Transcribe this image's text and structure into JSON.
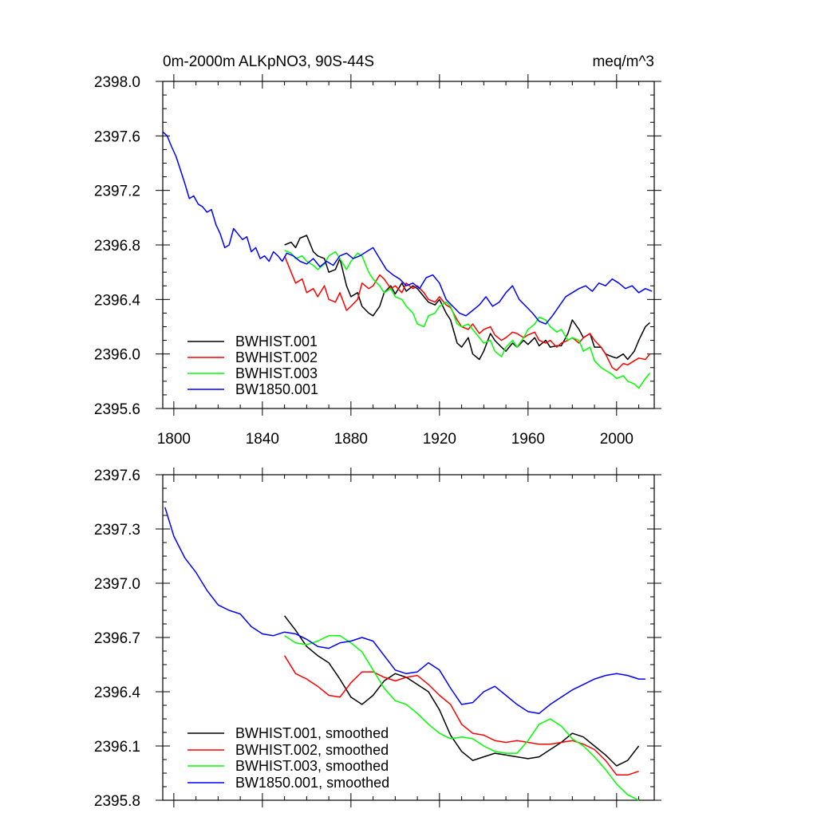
{
  "chart_data": [
    {
      "type": "line",
      "title_left": "0m-2000m ALKpNO3, 90S-44S",
      "title_right": "meq/m^3",
      "xlim": [
        1795,
        2017
      ],
      "ylim": [
        2395.6,
        2398.0
      ],
      "xticks": [
        1800,
        1840,
        1880,
        1920,
        1960,
        2000
      ],
      "yticks": [
        2395.6,
        2396.0,
        2396.4,
        2396.8,
        2397.2,
        2397.6,
        2398.0
      ],
      "ytick_labels": [
        "2395.6",
        "2396.0",
        "2396.4",
        "2396.8",
        "2397.2",
        "2397.6",
        "2398.0"
      ],
      "xtick_labels": [
        "1800",
        "1840",
        "1880",
        "1920",
        "1960",
        "2000"
      ],
      "series": [
        {
          "name": "BWHIST.001",
          "color": "#000000",
          "x": [
            1850,
            1853,
            1855,
            1857,
            1860,
            1863,
            1865,
            1868,
            1870,
            1873,
            1875,
            1878,
            1880,
            1883,
            1885,
            1888,
            1890,
            1893,
            1895,
            1898,
            1900,
            1903,
            1905,
            1908,
            1910,
            1913,
            1915,
            1918,
            1920,
            1923,
            1925,
            1928,
            1930,
            1933,
            1935,
            1938,
            1940,
            1943,
            1945,
            1948,
            1950,
            1953,
            1955,
            1958,
            1960,
            1963,
            1965,
            1968,
            1970,
            1973,
            1975,
            1978,
            1980,
            1983,
            1985,
            1988,
            1990,
            1993,
            1995,
            1998,
            2000,
            2003,
            2005,
            2008,
            2010,
            2013,
            2015
          ],
          "y": [
            2396.8,
            2396.82,
            2396.78,
            2396.85,
            2396.87,
            2396.75,
            2396.72,
            2396.7,
            2396.6,
            2396.62,
            2396.7,
            2396.5,
            2396.42,
            2396.45,
            2396.35,
            2396.3,
            2396.28,
            2396.35,
            2396.45,
            2396.5,
            2396.44,
            2396.52,
            2396.46,
            2396.5,
            2396.48,
            2396.42,
            2396.38,
            2396.36,
            2396.4,
            2396.3,
            2396.25,
            2396.08,
            2396.05,
            2396.12,
            2396.0,
            2395.96,
            2396.02,
            2396.15,
            2396.1,
            2396.05,
            2396.02,
            2396.08,
            2396.05,
            2396.1,
            2396.07,
            2396.12,
            2396.06,
            2396.1,
            2396.05,
            2396.06,
            2396.06,
            2396.15,
            2396.25,
            2396.18,
            2396.12,
            2396.15,
            2396.05,
            2396.05,
            2396.0,
            2395.98,
            2395.97,
            2396.0,
            2395.96,
            2396.02,
            2396.1,
            2396.2,
            2396.23
          ]
        },
        {
          "name": "BWHIST.002",
          "color": "#ff0000",
          "x": [
            1850,
            1853,
            1855,
            1858,
            1860,
            1863,
            1865,
            1868,
            1870,
            1873,
            1875,
            1878,
            1880,
            1883,
            1885,
            1888,
            1890,
            1893,
            1895,
            1898,
            1900,
            1903,
            1905,
            1908,
            1910,
            1913,
            1915,
            1918,
            1920,
            1923,
            1925,
            1928,
            1930,
            1933,
            1935,
            1938,
            1940,
            1943,
            1945,
            1948,
            1950,
            1953,
            1955,
            1958,
            1960,
            1963,
            1965,
            1968,
            1970,
            1973,
            1975,
            1978,
            1980,
            1983,
            1985,
            1988,
            1990,
            1993,
            1995,
            1998,
            2000,
            2003,
            2005,
            2008,
            2010,
            2013,
            2015
          ],
          "y": [
            2396.72,
            2396.6,
            2396.52,
            2396.55,
            2396.45,
            2396.48,
            2396.42,
            2396.5,
            2396.4,
            2396.38,
            2396.45,
            2396.32,
            2396.35,
            2396.4,
            2396.52,
            2396.48,
            2396.5,
            2396.58,
            2396.55,
            2396.48,
            2396.5,
            2396.45,
            2396.52,
            2396.48,
            2396.5,
            2396.45,
            2396.4,
            2396.38,
            2396.42,
            2396.36,
            2396.34,
            2396.25,
            2396.2,
            2396.18,
            2396.22,
            2396.15,
            2396.18,
            2396.2,
            2396.14,
            2396.1,
            2396.12,
            2396.16,
            2396.15,
            2396.12,
            2396.14,
            2396.16,
            2396.1,
            2396.08,
            2396.1,
            2396.05,
            2396.08,
            2396.1,
            2396.12,
            2396.08,
            2396.12,
            2396.15,
            2396.1,
            2396.05,
            2396.0,
            2395.9,
            2395.88,
            2395.93,
            2395.92,
            2395.95,
            2395.97,
            2395.96,
            2396.0
          ]
        },
        {
          "name": "BWHIST.003",
          "color": "#00ff00",
          "x": [
            1850,
            1853,
            1855,
            1858,
            1860,
            1863,
            1865,
            1868,
            1870,
            1873,
            1875,
            1878,
            1880,
            1883,
            1885,
            1888,
            1890,
            1893,
            1895,
            1898,
            1900,
            1903,
            1905,
            1908,
            1910,
            1913,
            1915,
            1918,
            1920,
            1923,
            1925,
            1928,
            1930,
            1933,
            1935,
            1938,
            1940,
            1943,
            1945,
            1948,
            1950,
            1953,
            1955,
            1958,
            1960,
            1963,
            1965,
            1968,
            1970,
            1973,
            1975,
            1978,
            1980,
            1983,
            1985,
            1988,
            1990,
            1993,
            1995,
            1998,
            2000,
            2003,
            2005,
            2008,
            2010,
            2013,
            2015
          ],
          "y": [
            2396.76,
            2396.74,
            2396.7,
            2396.72,
            2396.68,
            2396.65,
            2396.62,
            2396.66,
            2396.72,
            2396.75,
            2396.7,
            2396.62,
            2396.68,
            2396.74,
            2396.72,
            2396.6,
            2396.55,
            2396.5,
            2396.45,
            2396.48,
            2396.42,
            2396.4,
            2396.35,
            2396.3,
            2396.22,
            2396.2,
            2396.28,
            2396.3,
            2396.35,
            2396.38,
            2396.35,
            2396.22,
            2396.2,
            2396.22,
            2396.18,
            2396.12,
            2396.08,
            2396.1,
            2396.02,
            2395.98,
            2396.05,
            2396.1,
            2396.05,
            2396.12,
            2396.18,
            2396.22,
            2396.27,
            2396.25,
            2396.2,
            2396.16,
            2396.18,
            2396.1,
            2396.12,
            2396.1,
            2396.02,
            2396.05,
            2395.95,
            2395.9,
            2395.88,
            2395.85,
            2395.82,
            2395.84,
            2395.8,
            2395.78,
            2395.75,
            2395.82,
            2395.86
          ]
        },
        {
          "name": "BW1850.001",
          "color": "#0000ff",
          "x": [
            1795,
            1797,
            1799,
            1801,
            1803,
            1805,
            1807,
            1809,
            1811,
            1813,
            1815,
            1817,
            1819,
            1821,
            1823,
            1825,
            1827,
            1829,
            1831,
            1833,
            1835,
            1837,
            1839,
            1841,
            1843,
            1845,
            1847,
            1849,
            1851,
            1854,
            1857,
            1860,
            1863,
            1866,
            1869,
            1872,
            1875,
            1878,
            1881,
            1884,
            1887,
            1890,
            1893,
            1896,
            1899,
            1902,
            1905,
            1908,
            1911,
            1914,
            1917,
            1920,
            1923,
            1926,
            1929,
            1932,
            1935,
            1938,
            1941,
            1944,
            1947,
            1950,
            1953,
            1956,
            1959,
            1962,
            1965,
            1968,
            1971,
            1974,
            1977,
            1980,
            1983,
            1986,
            1989,
            1992,
            1995,
            1998,
            2001,
            2004,
            2007,
            2010,
            2013,
            2016
          ],
          "y": [
            2397.63,
            2397.6,
            2397.52,
            2397.45,
            2397.35,
            2397.25,
            2397.14,
            2397.16,
            2397.1,
            2397.08,
            2397.04,
            2397.06,
            2396.95,
            2396.88,
            2396.78,
            2396.8,
            2396.92,
            2396.88,
            2396.84,
            2396.86,
            2396.75,
            2396.78,
            2396.7,
            2396.72,
            2396.68,
            2396.75,
            2396.72,
            2396.68,
            2396.74,
            2396.72,
            2396.68,
            2396.66,
            2396.7,
            2396.64,
            2396.68,
            2396.65,
            2396.72,
            2396.74,
            2396.7,
            2396.72,
            2396.75,
            2396.78,
            2396.7,
            2396.62,
            2396.58,
            2396.55,
            2396.5,
            2396.52,
            2396.48,
            2396.56,
            2396.58,
            2396.52,
            2396.4,
            2396.35,
            2396.3,
            2396.28,
            2396.32,
            2396.36,
            2396.42,
            2396.35,
            2396.38,
            2396.45,
            2396.5,
            2396.4,
            2396.35,
            2396.3,
            2396.24,
            2396.22,
            2396.28,
            2396.35,
            2396.42,
            2396.45,
            2396.48,
            2396.5,
            2396.46,
            2396.52,
            2396.5,
            2396.55,
            2396.52,
            2396.48,
            2396.5,
            2396.45,
            2396.48,
            2396.46
          ]
        }
      ]
    },
    {
      "type": "line",
      "title_left": "",
      "title_right": "",
      "xlim": [
        1795,
        2017
      ],
      "ylim": [
        2395.8,
        2397.6
      ],
      "xticks": [
        1800,
        1840,
        1880,
        1920,
        1960,
        2000
      ],
      "yticks": [
        2395.8,
        2396.1,
        2396.4,
        2396.7,
        2397.0,
        2397.3,
        2397.6
      ],
      "ytick_labels": [
        "2395.8",
        "2396.1",
        "2396.4",
        "2396.7",
        "2397.0",
        "2397.3",
        "2397.6"
      ],
      "xtick_labels": [],
      "series": [
        {
          "name": "BWHIST.001, smoothed",
          "color": "#000000",
          "x": [
            1850,
            1855,
            1860,
            1865,
            1870,
            1875,
            1880,
            1885,
            1890,
            1895,
            1900,
            1905,
            1910,
            1915,
            1920,
            1925,
            1930,
            1935,
            1940,
            1945,
            1950,
            1955,
            1960,
            1965,
            1970,
            1975,
            1980,
            1985,
            1990,
            1995,
            2000,
            2005,
            2010
          ],
          "y": [
            2396.82,
            2396.74,
            2396.65,
            2396.6,
            2396.56,
            2396.47,
            2396.37,
            2396.33,
            2396.38,
            2396.46,
            2396.5,
            2396.48,
            2396.44,
            2396.4,
            2396.3,
            2396.16,
            2396.07,
            2396.02,
            2396.04,
            2396.06,
            2396.05,
            2396.04,
            2396.03,
            2396.04,
            2396.08,
            2396.12,
            2396.17,
            2396.15,
            2396.1,
            2396.05,
            2395.99,
            2396.02,
            2396.1
          ]
        },
        {
          "name": "BWHIST.002, smoothed",
          "color": "#ff0000",
          "x": [
            1850,
            1855,
            1860,
            1865,
            1870,
            1875,
            1880,
            1885,
            1890,
            1895,
            1900,
            1905,
            1910,
            1915,
            1920,
            1925,
            1930,
            1935,
            1940,
            1945,
            1950,
            1955,
            1960,
            1965,
            1970,
            1975,
            1980,
            1985,
            1990,
            1995,
            2000,
            2005,
            2010
          ],
          "y": [
            2396.6,
            2396.5,
            2396.47,
            2396.43,
            2396.38,
            2396.37,
            2396.45,
            2396.51,
            2396.51,
            2396.48,
            2396.46,
            2396.48,
            2396.49,
            2396.44,
            2396.38,
            2396.33,
            2396.22,
            2396.17,
            2396.16,
            2396.13,
            2396.12,
            2396.13,
            2396.12,
            2396.11,
            2396.11,
            2396.12,
            2396.13,
            2396.11,
            2396.08,
            2396.02,
            2395.94,
            2395.94,
            2395.96
          ]
        },
        {
          "name": "BWHIST.003, smoothed",
          "color": "#00ff00",
          "x": [
            1850,
            1855,
            1860,
            1865,
            1870,
            1875,
            1880,
            1885,
            1890,
            1895,
            1900,
            1905,
            1910,
            1915,
            1920,
            1925,
            1930,
            1935,
            1940,
            1945,
            1950,
            1955,
            1960,
            1965,
            1970,
            1975,
            1980,
            1985,
            1990,
            1995,
            2000,
            2005,
            2010
          ],
          "y": [
            2396.71,
            2396.67,
            2396.66,
            2396.68,
            2396.71,
            2396.71,
            2396.67,
            2396.62,
            2396.52,
            2396.42,
            2396.35,
            2396.33,
            2396.28,
            2396.22,
            2396.17,
            2396.14,
            2396.15,
            2396.14,
            2396.1,
            2396.07,
            2396.06,
            2396.06,
            2396.13,
            2396.22,
            2396.25,
            2396.21,
            2396.14,
            2396.1,
            2396.04,
            2395.97,
            2395.89,
            2395.83,
            2395.8
          ]
        },
        {
          "name": "BW1850.001, smoothed",
          "color": "#0000ff",
          "x": [
            1796,
            1800,
            1805,
            1810,
            1815,
            1820,
            1825,
            1830,
            1835,
            1840,
            1845,
            1850,
            1855,
            1860,
            1865,
            1870,
            1875,
            1880,
            1885,
            1890,
            1895,
            1900,
            1905,
            1910,
            1915,
            1920,
            1925,
            1930,
            1935,
            1940,
            1945,
            1950,
            1955,
            1960,
            1965,
            1970,
            1975,
            1980,
            1985,
            1990,
            1995,
            2000,
            2005,
            2010,
            2013
          ],
          "y": [
            2397.42,
            2397.26,
            2397.14,
            2397.06,
            2396.96,
            2396.88,
            2396.85,
            2396.83,
            2396.76,
            2396.72,
            2396.71,
            2396.73,
            2396.72,
            2396.69,
            2396.65,
            2396.64,
            2396.67,
            2396.68,
            2396.7,
            2396.68,
            2396.6,
            2396.52,
            2396.5,
            2396.51,
            2396.56,
            2396.52,
            2396.42,
            2396.33,
            2396.34,
            2396.4,
            2396.43,
            2396.38,
            2396.33,
            2396.29,
            2396.28,
            2396.33,
            2396.37,
            2396.41,
            2396.44,
            2396.47,
            2396.49,
            2396.5,
            2396.49,
            2396.47,
            2396.47
          ]
        }
      ]
    }
  ]
}
